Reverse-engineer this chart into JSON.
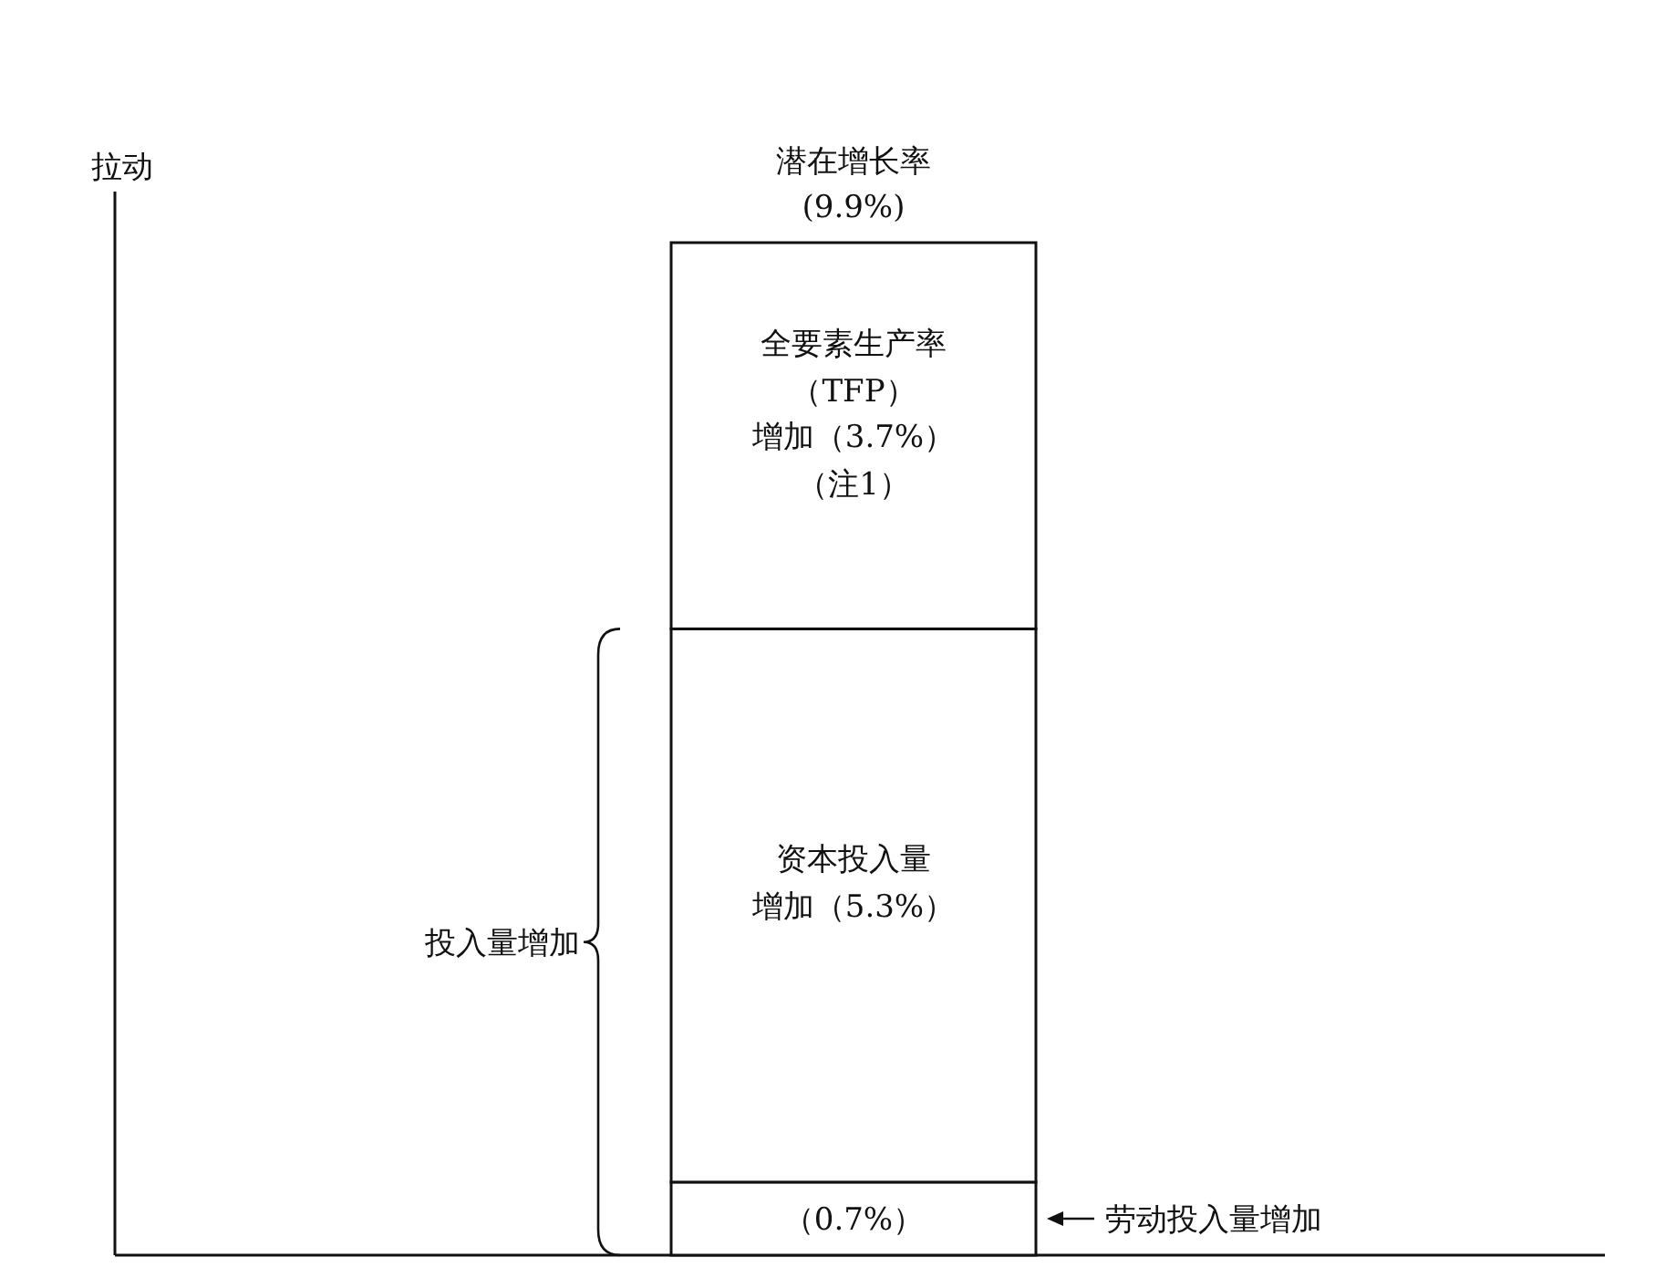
{
  "chart_data": {
    "type": "bar",
    "stacked": true,
    "categories": [
      null
    ],
    "series": [
      {
        "color": "#ffffff",
        "values": [
          0.7
        ],
        "value_labels": [
          "（0.7%）"
        ]
      },
      {
        "color": "#ffffff",
        "values": [
          5.3
        ],
        "value_labels": [
          "增加（5.3%）"
        ]
      },
      {
        "color": "#ffffff",
        "values": [
          3.7
        ],
        "value_labels": [
          "增加（3.7%）"
        ]
      }
    ],
    "annotations": [
      "潜在增长率",
      "(9.9%)",
      "全要素生产率",
      "（TFP）",
      "（注1）",
      "资本投入量",
      "投入量增加",
      "劳动投入量增加",
      "拉动"
    ]
  }
}
